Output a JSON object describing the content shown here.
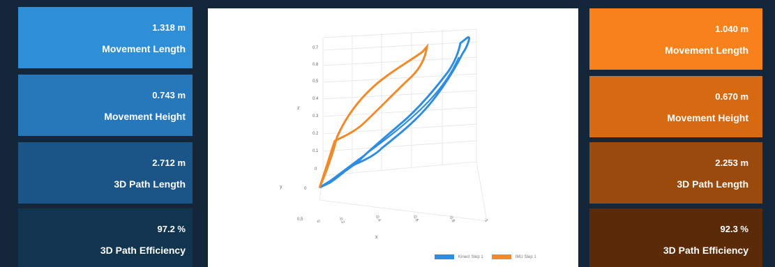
{
  "colors": {
    "background": "#13263a",
    "left_cards": [
      "#2f8fd6",
      "#2778bb",
      "#1b5486",
      "#11344f"
    ],
    "right_cards": [
      "#f7821c",
      "#d66a12",
      "#9b4a0e",
      "#5b2a08"
    ],
    "kinect_series": "#2f8de0",
    "imu_series": "#f08a2a"
  },
  "left_cards": [
    {
      "value": "1.318 m",
      "label": "Movement Length"
    },
    {
      "value": "0.743 m",
      "label": "Movement Height"
    },
    {
      "value": "2.712 m",
      "label": "3D Path Length"
    },
    {
      "value": "97.2 %",
      "label": "3D Path Efficiency"
    }
  ],
  "right_cards": [
    {
      "value": "1.040 m",
      "label": "Movement Length"
    },
    {
      "value": "0.670 m",
      "label": "Movement Height"
    },
    {
      "value": "2.253 m",
      "label": "3D Path Length"
    },
    {
      "value": "92.3 %",
      "label": "3D Path Efficiency"
    }
  ],
  "chart": {
    "z_axis_label": "z",
    "y_axis_label": "y",
    "x_axis_label": "x",
    "z_ticks": [
      "0.7",
      "0.6",
      "0.5",
      "0.4",
      "0.3",
      "0.2",
      "0.1",
      "0"
    ],
    "y_ticks": [
      "0",
      "0.5"
    ],
    "x_ticks": [
      "0",
      "-0.2",
      "-0.4",
      "-0.6",
      "-0.8",
      "-1"
    ],
    "legend": [
      "Kinect Step 1",
      "IMU Step 1"
    ]
  }
}
